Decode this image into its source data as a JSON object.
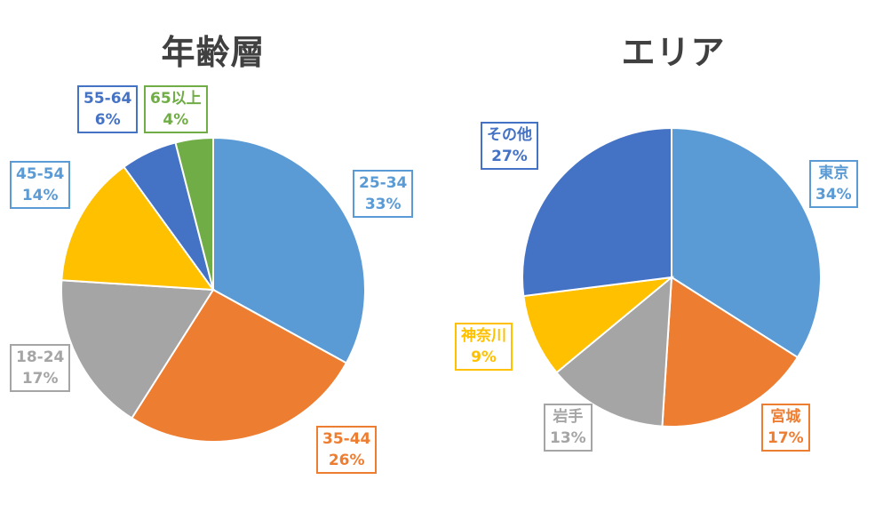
{
  "chart_data": [
    {
      "type": "pie",
      "title": "年齢層",
      "slices": [
        {
          "label": "25-34",
          "value": 33,
          "value_text": "33%",
          "color": "#5b9bd5",
          "text_color": "#5b9bd5"
        },
        {
          "label": "35-44",
          "value": 26,
          "value_text": "26%",
          "color": "#ed7d31",
          "text_color": "#ed7d31"
        },
        {
          "label": "18-24",
          "value": 17,
          "value_text": "17%",
          "color": "#a5a5a5",
          "text_color": "#a5a5a5"
        },
        {
          "label": "45-54",
          "value": 14,
          "value_text": "14%",
          "color": "#ffc000",
          "text_color": "#5b9bd5"
        },
        {
          "label": "55-64",
          "value": 6,
          "value_text": "6%",
          "color": "#4472c4",
          "text_color": "#4472c4"
        },
        {
          "label": "65以上",
          "value": 4,
          "value_text": "4%",
          "color": "#70ad47",
          "text_color": "#70ad47"
        }
      ]
    },
    {
      "type": "pie",
      "title": "エリア",
      "slices": [
        {
          "label": "東京",
          "value": 34,
          "value_text": "34%",
          "color": "#5b9bd5",
          "text_color": "#5b9bd5"
        },
        {
          "label": "宮城",
          "value": 17,
          "value_text": "17%",
          "color": "#ed7d31",
          "text_color": "#ed7d31"
        },
        {
          "label": "岩手",
          "value": 13,
          "value_text": "13%",
          "color": "#a5a5a5",
          "text_color": "#a5a5a5"
        },
        {
          "label": "神奈川",
          "value": 9,
          "value_text": "9%",
          "color": "#ffc000",
          "text_color": "#ffc000"
        },
        {
          "label": "その他",
          "value": 27,
          "value_text": "27%",
          "color": "#4472c4",
          "text_color": "#4472c4"
        }
      ]
    }
  ]
}
